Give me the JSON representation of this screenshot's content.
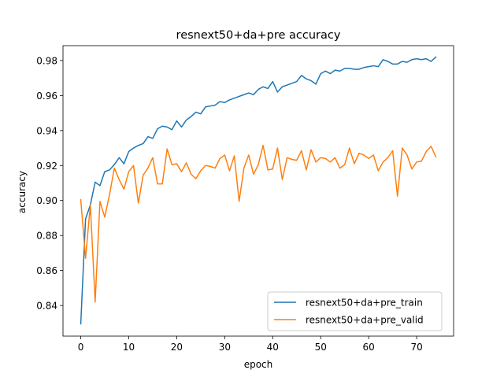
{
  "chart_data": {
    "type": "line",
    "title": "resnext50+da+pre accuracy",
    "xlabel": "epoch",
    "ylabel": "accuracy",
    "xlim": [
      -3.7,
      77.7
    ],
    "ylim": [
      0.8225,
      0.9885
    ],
    "xticks": [
      0,
      10,
      20,
      30,
      40,
      50,
      60,
      70
    ],
    "yticks": [
      0.84,
      0.86,
      0.88,
      0.9,
      0.92,
      0.94,
      0.96,
      0.98
    ],
    "ytick_labels": [
      "0.84",
      "0.86",
      "0.88",
      "0.90",
      "0.92",
      "0.94",
      "0.96",
      "0.98"
    ],
    "legend_position": "lower-right",
    "grid": false,
    "series": [
      {
        "name": "resnext50+da+pre_train",
        "color": "#1f77b4",
        "x": [
          0,
          1,
          2,
          3,
          4,
          5,
          6,
          7,
          8,
          9,
          10,
          11,
          12,
          13,
          14,
          15,
          16,
          17,
          18,
          19,
          20,
          21,
          22,
          23,
          24,
          25,
          26,
          27,
          28,
          29,
          30,
          31,
          32,
          33,
          34,
          35,
          36,
          37,
          38,
          39,
          40,
          41,
          42,
          43,
          44,
          45,
          46,
          47,
          48,
          49,
          50,
          51,
          52,
          53,
          54,
          55,
          56,
          57,
          58,
          59,
          60,
          61,
          62,
          63,
          64,
          65,
          66,
          67,
          68,
          69,
          70,
          71,
          72,
          73,
          74
        ],
        "values": [
          0.8295,
          0.8895,
          0.8975,
          0.9105,
          0.9085,
          0.9165,
          0.9175,
          0.9205,
          0.9245,
          0.921,
          0.928,
          0.93,
          0.9315,
          0.9325,
          0.9365,
          0.9355,
          0.941,
          0.9425,
          0.942,
          0.9405,
          0.9455,
          0.942,
          0.946,
          0.948,
          0.9505,
          0.9495,
          0.9535,
          0.954,
          0.9545,
          0.9565,
          0.956,
          0.9575,
          0.9585,
          0.9595,
          0.9605,
          0.9615,
          0.9605,
          0.9635,
          0.965,
          0.964,
          0.968,
          0.962,
          0.965,
          0.966,
          0.967,
          0.968,
          0.9715,
          0.9695,
          0.9685,
          0.9665,
          0.9725,
          0.974,
          0.9725,
          0.9745,
          0.974,
          0.9755,
          0.9755,
          0.975,
          0.975,
          0.976,
          0.9765,
          0.977,
          0.9765,
          0.9805,
          0.9795,
          0.978,
          0.978,
          0.9795,
          0.979,
          0.9805,
          0.981,
          0.9805,
          0.981,
          0.9795,
          0.982
        ]
      },
      {
        "name": "resnext50+da+pre_valid",
        "color": "#ff7f0e",
        "x": [
          0,
          1,
          2,
          3,
          4,
          5,
          6,
          7,
          8,
          9,
          10,
          11,
          12,
          13,
          14,
          15,
          16,
          17,
          18,
          19,
          20,
          21,
          22,
          23,
          24,
          25,
          26,
          27,
          28,
          29,
          30,
          31,
          32,
          33,
          34,
          35,
          36,
          37,
          38,
          39,
          40,
          41,
          42,
          43,
          44,
          45,
          46,
          47,
          48,
          49,
          50,
          51,
          52,
          53,
          54,
          55,
          56,
          57,
          58,
          59,
          60,
          61,
          62,
          63,
          64,
          65,
          66,
          67,
          68,
          69,
          70,
          71,
          72,
          73,
          74
        ],
        "values": [
          0.9005,
          0.867,
          0.8975,
          0.842,
          0.8995,
          0.8905,
          0.9035,
          0.9185,
          0.912,
          0.9065,
          0.9165,
          0.92,
          0.8985,
          0.9145,
          0.9185,
          0.9245,
          0.9095,
          0.9095,
          0.9295,
          0.9205,
          0.921,
          0.9165,
          0.9215,
          0.915,
          0.9125,
          0.917,
          0.92,
          0.9195,
          0.9185,
          0.924,
          0.926,
          0.917,
          0.9255,
          0.8995,
          0.9185,
          0.926,
          0.915,
          0.9205,
          0.9315,
          0.9175,
          0.918,
          0.93,
          0.912,
          0.9245,
          0.9235,
          0.923,
          0.9285,
          0.9175,
          0.929,
          0.922,
          0.9245,
          0.924,
          0.922,
          0.9245,
          0.9185,
          0.9205,
          0.93,
          0.921,
          0.927,
          0.926,
          0.924,
          0.926,
          0.917,
          0.922,
          0.9245,
          0.9285,
          0.9025,
          0.93,
          0.926,
          0.918,
          0.922,
          0.9225,
          0.928,
          0.931,
          0.925
        ]
      }
    ]
  }
}
